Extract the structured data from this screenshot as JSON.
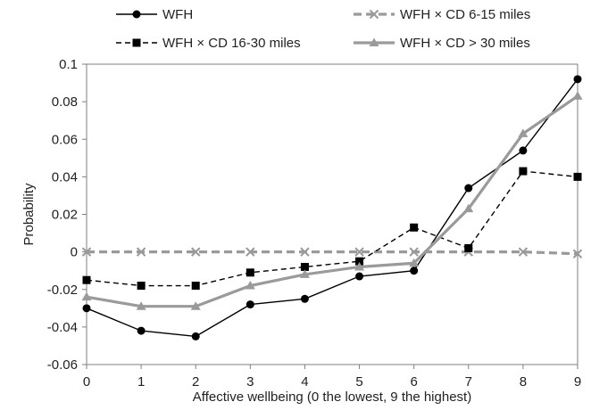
{
  "chart_data": {
    "type": "line",
    "xlabel": "Affective wellbeing  (0 the lowest,  9 the highest)",
    "ylabel": "Probability",
    "x": [
      0,
      1,
      2,
      3,
      4,
      5,
      6,
      7,
      8,
      9
    ],
    "xlim": [
      0,
      9
    ],
    "ylim": [
      -0.06,
      0.1
    ],
    "xticks": [
      "0",
      "1",
      "2",
      "3",
      "4",
      "5",
      "6",
      "7",
      "8",
      "9"
    ],
    "yticks": [
      -0.06,
      -0.04,
      -0.02,
      0,
      0.02,
      0.04,
      0.06,
      0.08,
      0.1
    ],
    "ytick_labels": [
      "-0.06",
      "-0.04",
      "-0.02",
      "0",
      "0.02",
      "0.04",
      "0.06",
      "0.08",
      "0.1"
    ],
    "grid": false,
    "legend_position": "top",
    "series": [
      {
        "name": "WFH",
        "color": "#000000",
        "dash": "solid",
        "marker": "circle",
        "width": "thin",
        "values": [
          -0.03,
          -0.042,
          -0.045,
          -0.028,
          -0.025,
          -0.013,
          -0.01,
          0.034,
          0.054,
          0.092
        ]
      },
      {
        "name": "WFH × CD 6-15 miles",
        "color": "#9a9a9a",
        "dash": "dashed",
        "marker": "x",
        "width": "thick",
        "values": [
          0.0,
          0.0,
          0.0,
          0.0,
          0.0,
          0.0,
          0.0,
          0.0,
          0.0,
          -0.001
        ]
      },
      {
        "name": "WFH × CD 16-30 miles",
        "color": "#000000",
        "dash": "dashed",
        "marker": "square",
        "width": "thin",
        "values": [
          -0.015,
          -0.018,
          -0.018,
          -0.011,
          -0.008,
          -0.005,
          0.013,
          0.002,
          0.043,
          0.04
        ]
      },
      {
        "name": "WFH × CD > 30 miles",
        "color": "#9a9a9a",
        "dash": "solid",
        "marker": "triangle",
        "width": "thick",
        "values": [
          -0.024,
          -0.029,
          -0.029,
          -0.018,
          -0.012,
          -0.008,
          -0.006,
          0.023,
          0.063,
          0.083
        ]
      }
    ]
  }
}
